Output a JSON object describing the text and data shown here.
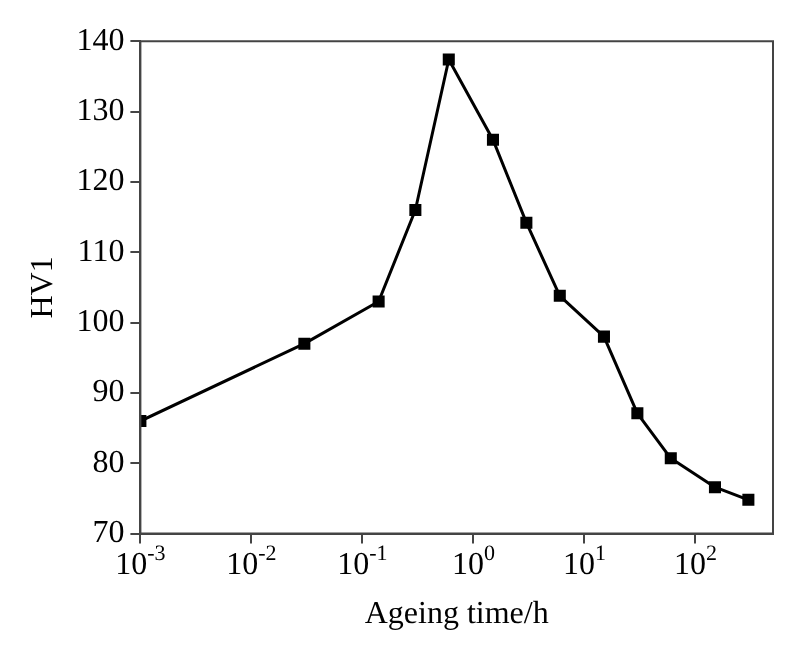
{
  "chart_data": {
    "type": "line",
    "xlabel": "Ageing time/h",
    "ylabel": "HV1",
    "log": "x",
    "grid": false,
    "legend": false,
    "marker": "square",
    "line_style": "solid",
    "x": [
      0.001,
      0.03,
      0.14,
      0.3,
      0.6,
      1.5,
      3,
      6,
      15,
      30,
      60,
      150,
      300
    ],
    "series": [
      {
        "color": "#000000",
        "values": [
          86,
          97,
          103,
          116,
          137.4,
          126,
          114.2,
          103.8,
          98,
          87.1,
          80.7,
          76.6,
          74.8
        ]
      }
    ],
    "xlim": [
      0.001,
      500
    ],
    "xticks": [
      {
        "value": 0.001,
        "label": "10$^{-3}$"
      },
      {
        "value": 0.01,
        "label": "10$^{-2}$"
      },
      {
        "value": 0.1,
        "label": "10$^{-1}$"
      },
      {
        "value": 1,
        "label": "10$^{0}$"
      },
      {
        "value": 10,
        "label": "10$^{1}$"
      },
      {
        "value": 100,
        "label": "10$^{2}$"
      }
    ],
    "ylim": [
      70,
      140
    ],
    "yticks": [
      70,
      80,
      90,
      100,
      110,
      120,
      130,
      140
    ]
  }
}
